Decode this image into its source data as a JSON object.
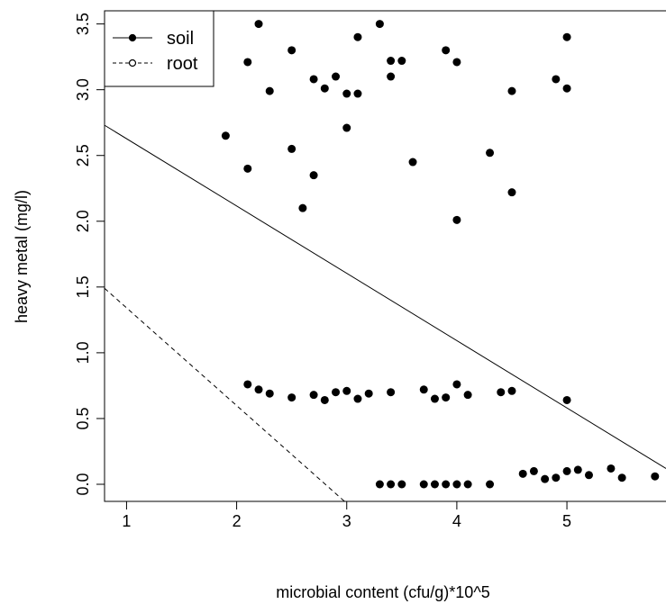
{
  "chart_data": {
    "type": "scatter",
    "xlabel": "microbial content (cfu/g)*10^5",
    "ylabel": "heavy metal (mg/l)",
    "xlim": [
      0.8,
      5.9
    ],
    "ylim": [
      -0.13,
      3.6
    ],
    "xticks": [
      {
        "value": 1,
        "label": "1"
      },
      {
        "value": 2,
        "label": "2"
      },
      {
        "value": 3,
        "label": "3"
      },
      {
        "value": 4,
        "label": "4"
      },
      {
        "value": 5,
        "label": "5"
      }
    ],
    "yticks": [
      {
        "value": 0.0,
        "label": "0.0"
      },
      {
        "value": 0.5,
        "label": "0.5"
      },
      {
        "value": 1.0,
        "label": "1.0"
      },
      {
        "value": 1.5,
        "label": "1.5"
      },
      {
        "value": 2.0,
        "label": "2.0"
      },
      {
        "value": 2.5,
        "label": "2.5"
      },
      {
        "value": 3.0,
        "label": "3.0"
      },
      {
        "value": 3.5,
        "label": "3.5"
      }
    ],
    "legend": {
      "position": "top-left",
      "entries": [
        {
          "label": "soil",
          "line": "solid",
          "marker": "filled-circle"
        },
        {
          "label": "root",
          "line": "dashed",
          "marker": "open-circle"
        }
      ]
    },
    "lines": [
      {
        "label": "soil",
        "style": "solid",
        "x": [
          0.8,
          5.9
        ],
        "y": [
          2.73,
          0.12
        ]
      },
      {
        "label": "root",
        "style": "dashed",
        "x": [
          0.8,
          2.98
        ],
        "y": [
          1.49,
          -0.13
        ]
      }
    ],
    "points": [
      {
        "x": 1.9,
        "y": 2.65
      },
      {
        "x": 2.1,
        "y": 3.21
      },
      {
        "x": 2.1,
        "y": 2.4
      },
      {
        "x": 2.2,
        "y": 3.5
      },
      {
        "x": 2.3,
        "y": 2.99
      },
      {
        "x": 2.5,
        "y": 3.3
      },
      {
        "x": 2.5,
        "y": 2.55
      },
      {
        "x": 2.6,
        "y": 2.1
      },
      {
        "x": 2.7,
        "y": 3.08
      },
      {
        "x": 2.7,
        "y": 2.35
      },
      {
        "x": 2.8,
        "y": 3.01
      },
      {
        "x": 2.9,
        "y": 3.1
      },
      {
        "x": 3.0,
        "y": 2.97
      },
      {
        "x": 3.0,
        "y": 2.71
      },
      {
        "x": 3.1,
        "y": 3.4
      },
      {
        "x": 3.1,
        "y": 2.97
      },
      {
        "x": 3.3,
        "y": 3.5
      },
      {
        "x": 3.4,
        "y": 3.22
      },
      {
        "x": 3.4,
        "y": 3.1
      },
      {
        "x": 3.5,
        "y": 3.22
      },
      {
        "x": 3.6,
        "y": 2.45
      },
      {
        "x": 3.9,
        "y": 3.3
      },
      {
        "x": 4.0,
        "y": 3.21
      },
      {
        "x": 4.0,
        "y": 2.01
      },
      {
        "x": 4.3,
        "y": 2.52
      },
      {
        "x": 4.5,
        "y": 2.99
      },
      {
        "x": 4.5,
        "y": 2.22
      },
      {
        "x": 4.9,
        "y": 3.08
      },
      {
        "x": 5.0,
        "y": 3.4
      },
      {
        "x": 5.0,
        "y": 3.01
      },
      {
        "x": 2.1,
        "y": 0.76
      },
      {
        "x": 2.2,
        "y": 0.72
      },
      {
        "x": 2.3,
        "y": 0.69
      },
      {
        "x": 2.5,
        "y": 0.66
      },
      {
        "x": 2.7,
        "y": 0.68
      },
      {
        "x": 2.8,
        "y": 0.64
      },
      {
        "x": 2.9,
        "y": 0.7
      },
      {
        "x": 3.0,
        "y": 0.71
      },
      {
        "x": 3.1,
        "y": 0.65
      },
      {
        "x": 3.2,
        "y": 0.69
      },
      {
        "x": 3.4,
        "y": 0.7
      },
      {
        "x": 3.7,
        "y": 0.72
      },
      {
        "x": 3.8,
        "y": 0.65
      },
      {
        "x": 3.9,
        "y": 0.66
      },
      {
        "x": 4.0,
        "y": 0.76
      },
      {
        "x": 4.1,
        "y": 0.68
      },
      {
        "x": 4.4,
        "y": 0.7
      },
      {
        "x": 4.5,
        "y": 0.71
      },
      {
        "x": 5.0,
        "y": 0.64
      },
      {
        "x": 3.3,
        "y": 0.0
      },
      {
        "x": 3.4,
        "y": 0.0
      },
      {
        "x": 3.5,
        "y": 0.0
      },
      {
        "x": 3.7,
        "y": 0.0
      },
      {
        "x": 3.8,
        "y": 0.0
      },
      {
        "x": 3.9,
        "y": 0.0
      },
      {
        "x": 4.0,
        "y": 0.0
      },
      {
        "x": 4.1,
        "y": 0.0
      },
      {
        "x": 4.3,
        "y": 0.0
      },
      {
        "x": 4.6,
        "y": 0.08
      },
      {
        "x": 4.7,
        "y": 0.1
      },
      {
        "x": 4.8,
        "y": 0.04
      },
      {
        "x": 4.9,
        "y": 0.05
      },
      {
        "x": 5.0,
        "y": 0.1
      },
      {
        "x": 5.1,
        "y": 0.11
      },
      {
        "x": 5.2,
        "y": 0.07
      },
      {
        "x": 5.4,
        "y": 0.12
      },
      {
        "x": 5.5,
        "y": 0.05
      },
      {
        "x": 5.8,
        "y": 0.06
      }
    ],
    "colors": {
      "ink": "#000000",
      "background": "#ffffff"
    }
  }
}
